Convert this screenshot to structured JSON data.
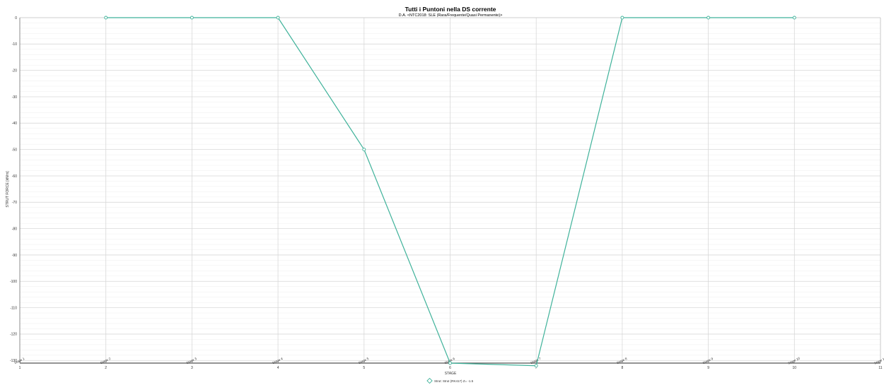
{
  "chart_data": {
    "type": "line",
    "title": "Tutti i Puntoni nella DS corrente",
    "subtitle": "D.A. <NTC2018: SLE (Rara/Frequente/Quasi Permanente)>",
    "xlabel": "STAGE",
    "ylabel": "STRUT FORCE [kN/m]",
    "xlim": [
      1,
      11
    ],
    "ylim": [
      -131,
      0
    ],
    "x_ticks": [
      1,
      2,
      3,
      4,
      5,
      6,
      7,
      8,
      9,
      10,
      11
    ],
    "y_ticks": [
      0,
      -10,
      -20,
      -30,
      -40,
      -50,
      -60,
      -70,
      -80,
      -90,
      -100,
      -110,
      -120,
      -130
    ],
    "grid": true,
    "legend_position": "bottom-center",
    "stage_labels": [
      "Stage 1",
      "Stage 2",
      "Stage 3",
      "Stage 4",
      "Stage 5",
      "Stage 6",
      "Stage 7",
      "Stage 8",
      "Stage 9",
      "Stage 10",
      "Stage 11"
    ],
    "series": [
      {
        "name": "Strut: Strut (RK417) Z= -1.5",
        "color": "#3fb29a",
        "x": [
          2,
          3,
          4,
          5,
          6,
          7,
          8,
          9,
          10
        ],
        "y": [
          0,
          0,
          0,
          -50,
          -131,
          -132,
          0,
          0,
          0
        ]
      }
    ]
  }
}
